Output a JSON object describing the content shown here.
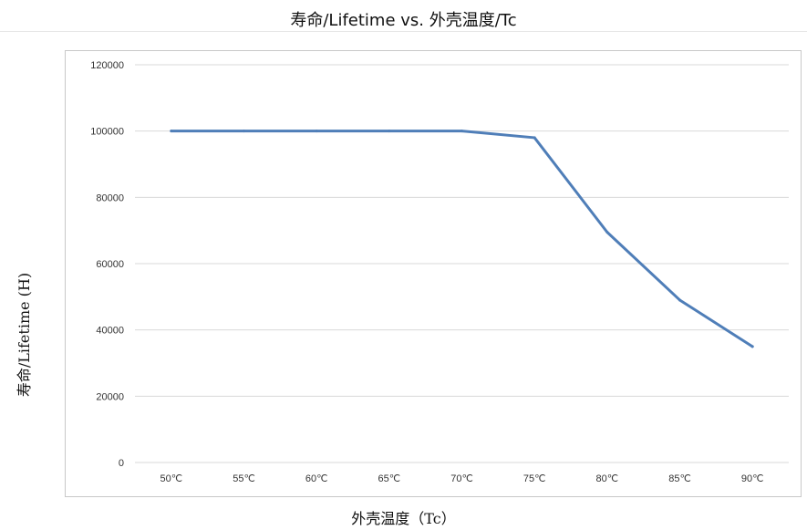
{
  "chart_data": {
    "type": "line",
    "title": "寿命/Lifetime vs. 外壳温度/Tc",
    "xlabel": "外壳温度（Tc）",
    "ylabel": "寿命/Lifetime (H)",
    "categories": [
      "50℃",
      "55℃",
      "60℃",
      "65℃",
      "70℃",
      "75℃",
      "80℃",
      "85℃",
      "90℃"
    ],
    "series": [
      {
        "values": [
          100000,
          100000,
          100000,
          100000,
          100000,
          98000,
          69500,
          49000,
          35000
        ]
      }
    ],
    "ylim": [
      0,
      120000
    ],
    "yticks": [
      "0",
      "20000",
      "40000",
      "60000",
      "80000",
      "100000",
      "120000"
    ],
    "grid": true,
    "line_color": "#4F7EB8",
    "grid_color": "#d9d9d9"
  }
}
